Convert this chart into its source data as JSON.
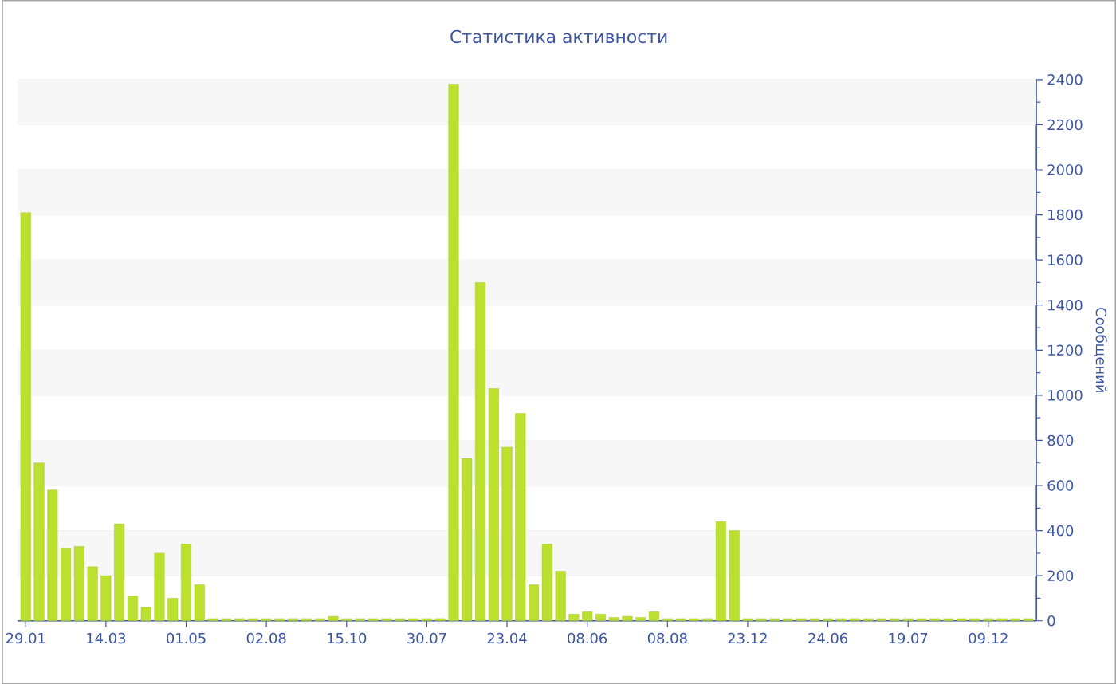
{
  "chart_data": {
    "type": "bar",
    "title": "Статистика активности",
    "ylabel": "Сообщений",
    "color": "#bbe02f",
    "grid": "y",
    "categories": [
      "29.01",
      null,
      null,
      null,
      null,
      null,
      "14.03",
      null,
      null,
      null,
      null,
      null,
      "01.05",
      null,
      null,
      null,
      null,
      null,
      "02.08",
      null,
      null,
      null,
      null,
      null,
      "15.10",
      null,
      null,
      null,
      null,
      null,
      "30.07",
      null,
      null,
      null,
      null,
      null,
      "23.04",
      null,
      null,
      null,
      null,
      null,
      "08.06",
      null,
      null,
      null,
      null,
      null,
      "08.08",
      null,
      null,
      null,
      null,
      null,
      "23.12",
      null,
      null,
      null,
      null,
      null,
      "24.06",
      null,
      null,
      null,
      null,
      null,
      "19.07",
      null,
      null,
      null,
      null,
      null,
      "09.12",
      null,
      null,
      null
    ],
    "values": [
      1810,
      700,
      580,
      320,
      330,
      240,
      200,
      430,
      110,
      60,
      300,
      100,
      340,
      160,
      10,
      10,
      10,
      10,
      10,
      10,
      10,
      10,
      10,
      20,
      10,
      10,
      10,
      10,
      10,
      10,
      10,
      10,
      2380,
      720,
      1500,
      1030,
      770,
      920,
      160,
      340,
      220,
      30,
      40,
      30,
      15,
      20,
      15,
      40,
      10,
      10,
      10,
      10,
      440,
      400,
      10,
      10,
      10,
      10,
      10,
      10,
      10,
      10,
      10,
      10,
      10,
      10,
      10,
      10,
      10,
      10,
      10,
      10,
      10,
      10,
      10,
      10
    ],
    "ylim": [
      0,
      2400
    ],
    "yticks": [
      0,
      200,
      400,
      600,
      800,
      1000,
      1200,
      1400,
      1600,
      1800,
      2000,
      2200,
      2400
    ]
  }
}
